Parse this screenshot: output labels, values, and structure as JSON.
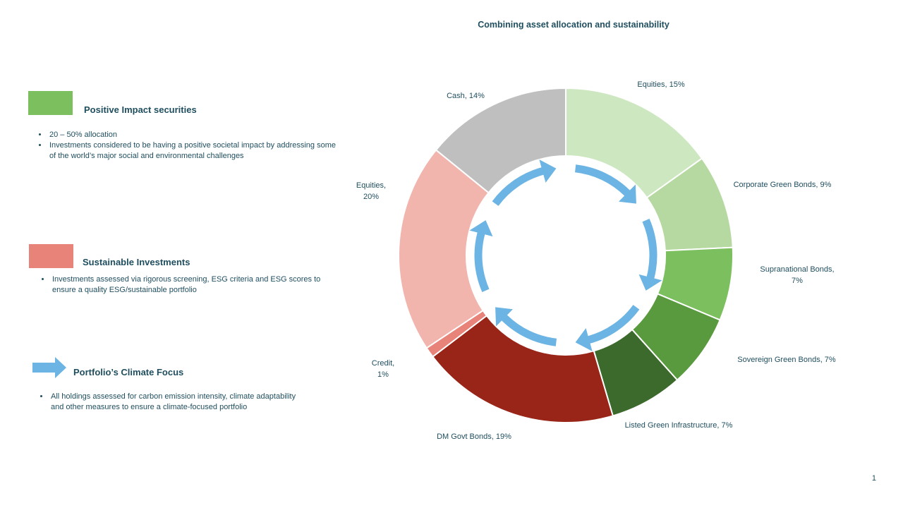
{
  "slide": {
    "title": "Combining asset allocation and sustainability",
    "page_number": "1"
  },
  "legend": [
    {
      "title": "Positive Impact securities",
      "color": "#7cbf5e",
      "bullets": [
        "20 – 50% allocation",
        "Investments considered to be having a positive societal impact by addressing some of the world’s major social and environmental challenges"
      ]
    },
    {
      "title": "Sustainable Investments",
      "color": "#e8837a",
      "bullets": [
        "Investments assessed via rigorous screening, ESG criteria and ESG scores to ensure a quality ESG/sustainable portfolio"
      ]
    },
    {
      "title": "Portfolio’s  Climate Focus",
      "color": "#6cb4e4",
      "icon": "arrow-right-icon",
      "bullets": [
        "All holdings assessed for carbon emission intensity, climate adaptability and other measures to ensure a climate-focused portfolio"
      ]
    }
  ],
  "chart_data": {
    "type": "pie",
    "style": "donut",
    "title": "Combining asset allocation and sustainability",
    "start_angle_deg": 0,
    "direction": "clockwise",
    "slices": [
      {
        "label": "Equities, 15%",
        "value": 15,
        "color": "#cde8c0"
      },
      {
        "label": "Corporate Green Bonds, 9%",
        "value": 9,
        "color": "#b5d9a0"
      },
      {
        "label": "Supranational Bonds, 7%",
        "value": 7,
        "color": "#7cbf5e"
      },
      {
        "label": "Sovereign Green Bonds, 7%",
        "value": 7,
        "color": "#5a9a3f"
      },
      {
        "label": "Listed Green Infrastructure, 7%",
        "value": 7,
        "color": "#3c6a2c"
      },
      {
        "label": "DM Govt Bonds, 19%",
        "value": 19,
        "color": "#982518"
      },
      {
        "label": "Credit, 1%",
        "value": 1,
        "color": "#e8837a"
      },
      {
        "label": "Equities, 20%",
        "value": 20,
        "color": "#f2b5ae"
      },
      {
        "label": "Cash, 14%",
        "value": 14,
        "color": "#bfbfbf"
      }
    ],
    "cycle_arrows": {
      "count": 6,
      "color": "#6cb4e4",
      "icon": "cycle-arrows-icon"
    }
  }
}
